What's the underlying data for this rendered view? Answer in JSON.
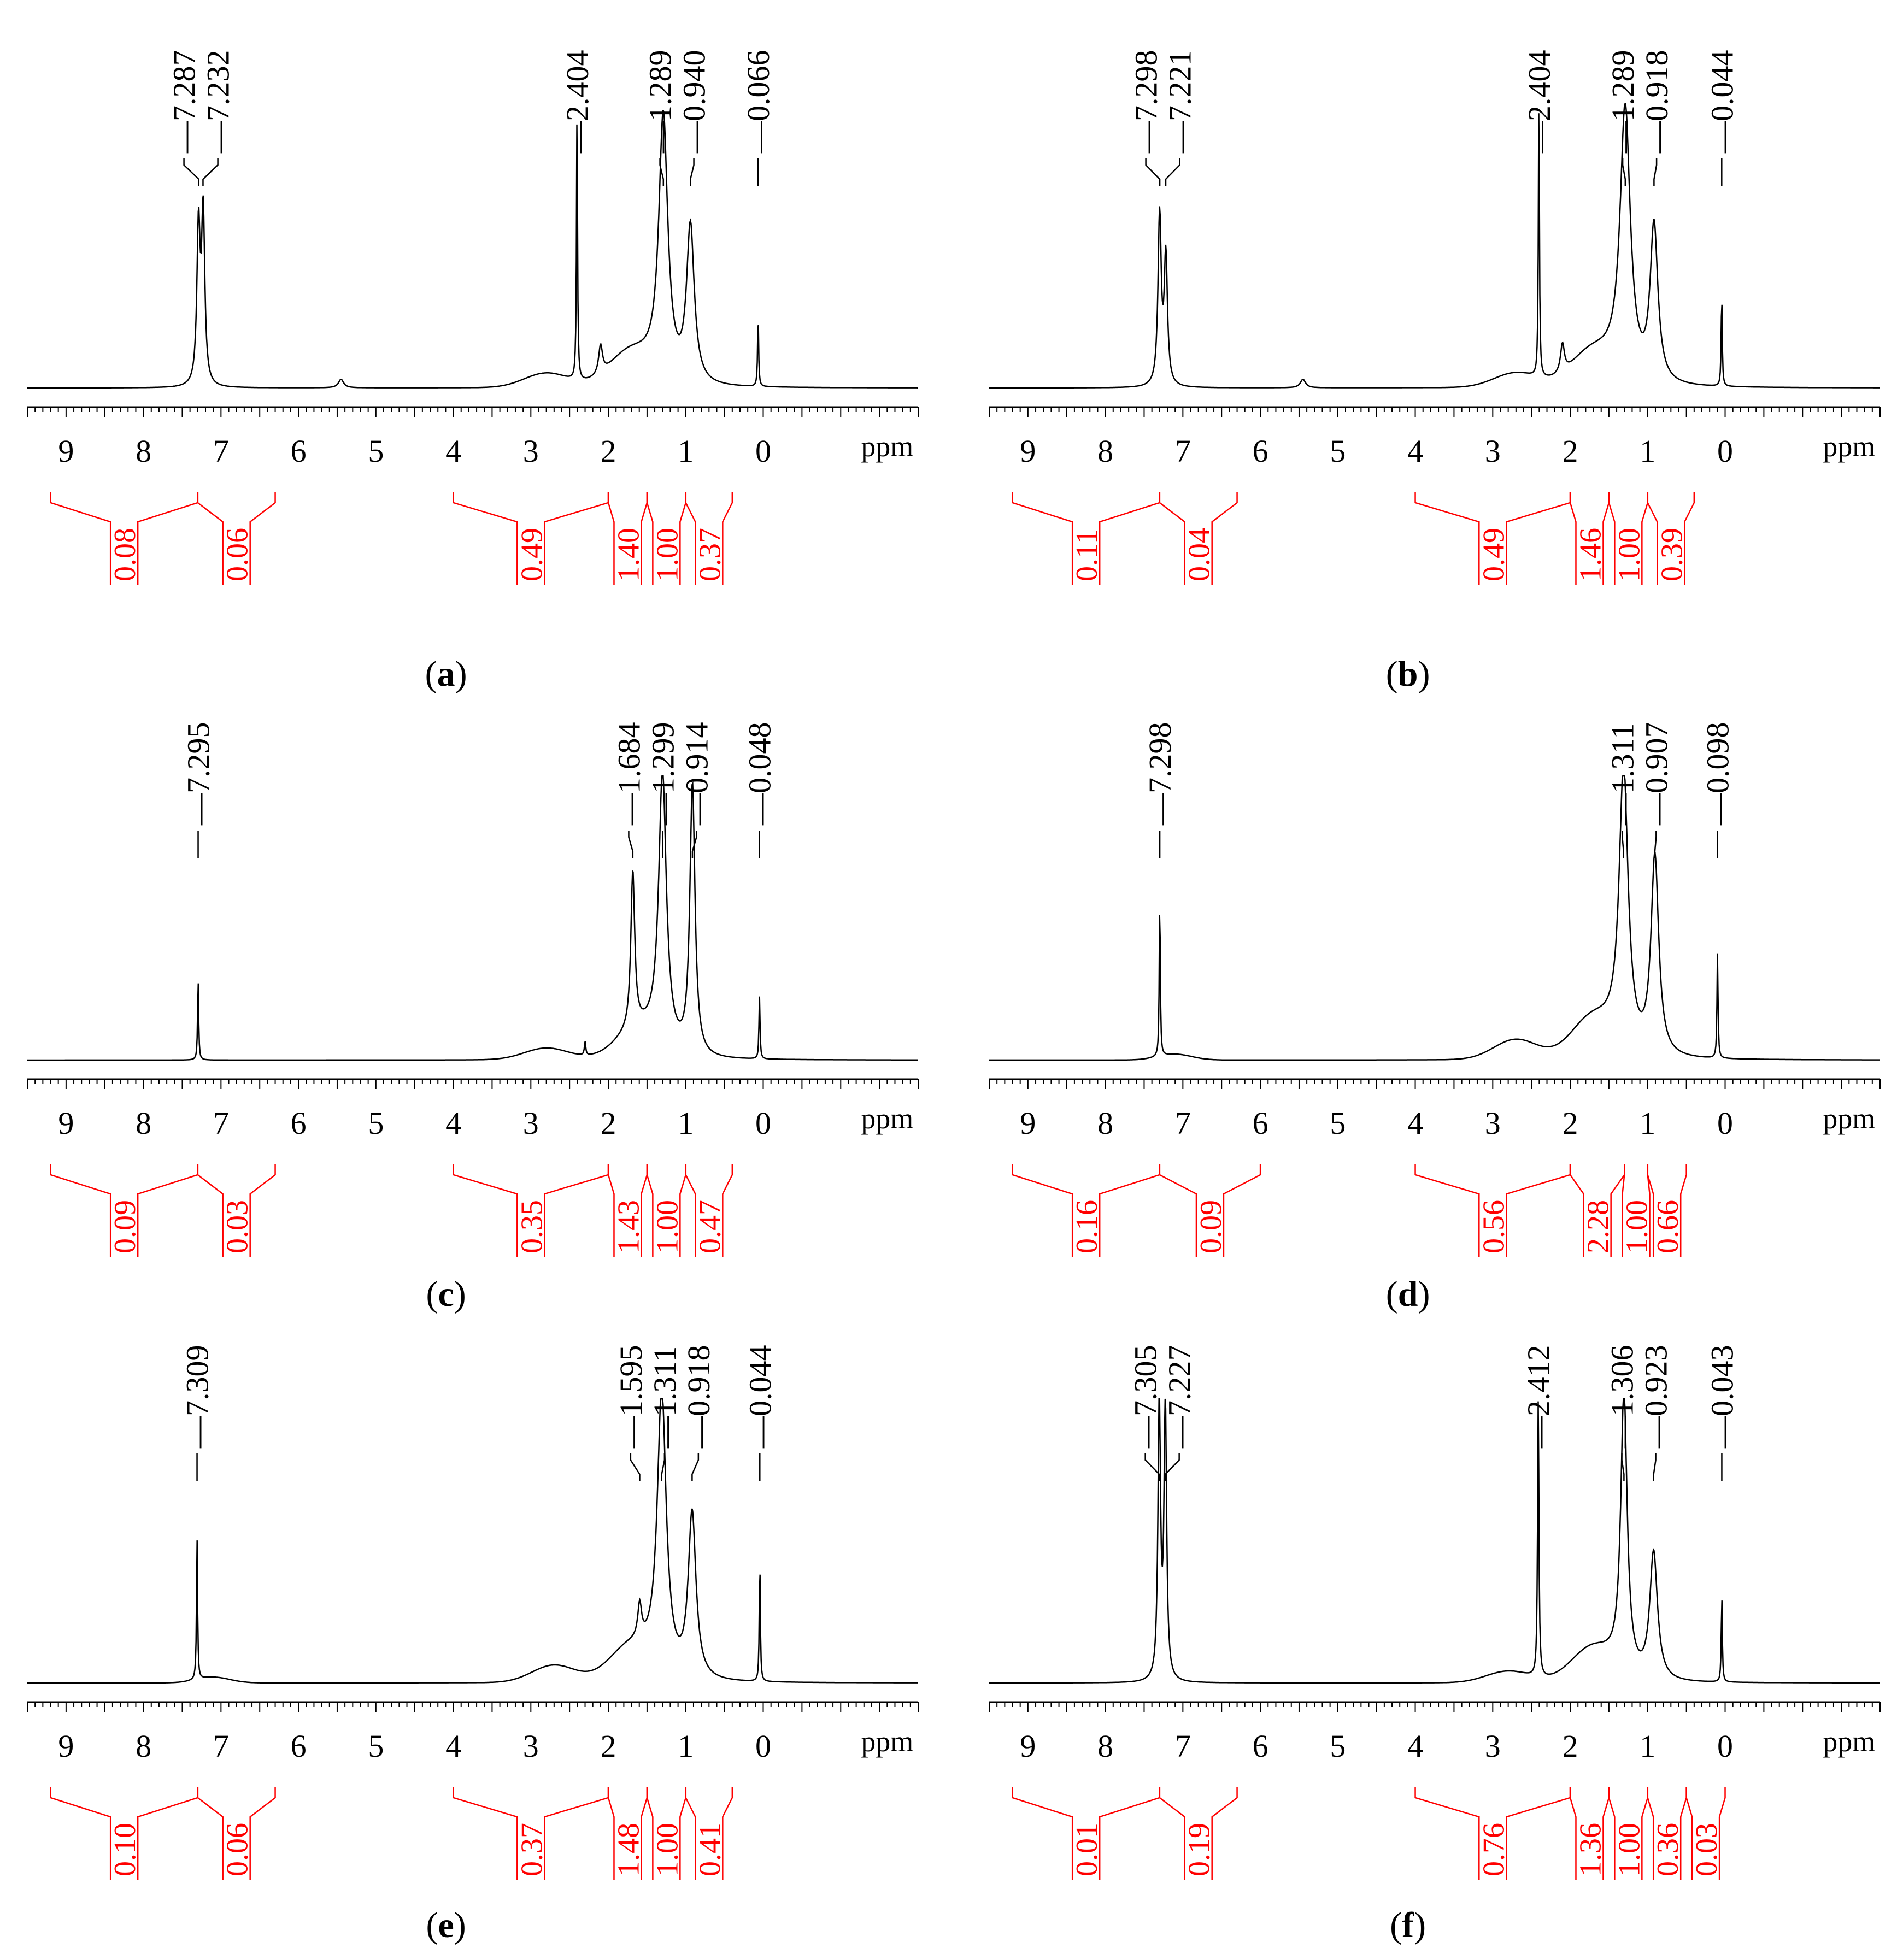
{
  "figure": {
    "panels": [
      {
        "label_prefix": "(",
        "label": "a",
        "label_suffix": ")"
      },
      {
        "label_prefix": "(",
        "label": "b",
        "label_suffix": ")"
      },
      {
        "label_prefix": "(",
        "label": "c",
        "label_suffix": ")"
      },
      {
        "label_prefix": "(",
        "label": "d",
        "label_suffix": ")"
      },
      {
        "label_prefix": "(",
        "label": "e",
        "label_suffix": ")"
      },
      {
        "label_prefix": "(",
        "label": "f",
        "label_suffix": ")"
      }
    ]
  },
  "colors": {
    "spectrum": "#000000",
    "integral": "#ff0000",
    "background": "#ffffff"
  },
  "chart_data": [
    {
      "type": "line",
      "panel": "a",
      "x_unit": "ppm",
      "xlim": [
        9.5,
        -2.0
      ],
      "x_reversed": true,
      "tick_labels": [
        "9",
        "8",
        "7",
        "6",
        "5",
        "4",
        "3",
        "2",
        "1",
        "0"
      ],
      "peak_labels": [
        {
          "ppm": 7.287,
          "text": "7.287"
        },
        {
          "ppm": 7.232,
          "text": "7.232"
        },
        {
          "ppm": 2.404,
          "text": "2.404"
        },
        {
          "ppm": 1.289,
          "text": "1.289"
        },
        {
          "ppm": 0.94,
          "text": "0.940"
        },
        {
          "ppm": 0.066,
          "text": "0.066"
        }
      ],
      "peaks": [
        {
          "ppm": 7.29,
          "height": 0.55,
          "width": 0.025
        },
        {
          "ppm": 7.23,
          "height": 0.6,
          "width": 0.025
        },
        {
          "ppm": 5.45,
          "height": 0.03,
          "width": 0.04
        },
        {
          "ppm": 2.404,
          "height": 0.95,
          "width": 0.008
        },
        {
          "ppm": 2.1,
          "height": 0.1,
          "width": 0.03
        },
        {
          "ppm": 1.29,
          "height": 0.92,
          "width": 0.07
        },
        {
          "ppm": 0.94,
          "height": 0.55,
          "width": 0.06
        },
        {
          "ppm": 0.066,
          "height": 0.25,
          "width": 0.008
        }
      ],
      "broad": [
        {
          "ppm": 2.8,
          "height": 0.05,
          "width": 0.4
        },
        {
          "ppm": 1.7,
          "height": 0.12,
          "width": 0.4
        }
      ],
      "integrals": [
        {
          "from": 9.2,
          "to": 7.3,
          "value": "0.08"
        },
        {
          "from": 7.3,
          "to": 6.3,
          "value": "0.06"
        },
        {
          "from": 4.0,
          "to": 2.0,
          "value": "0.49"
        },
        {
          "from": 2.0,
          "to": 1.5,
          "value": "1.40"
        },
        {
          "from": 1.5,
          "to": 1.0,
          "value": "1.00"
        },
        {
          "from": 1.0,
          "to": 0.4,
          "value": "0.37"
        }
      ]
    },
    {
      "type": "line",
      "panel": "b",
      "x_unit": "ppm",
      "xlim": [
        9.5,
        -2.0
      ],
      "x_reversed": true,
      "tick_labels": [
        "9",
        "8",
        "7",
        "6",
        "5",
        "4",
        "3",
        "2",
        "1",
        "0"
      ],
      "peak_labels": [
        {
          "ppm": 7.298,
          "text": "7.298"
        },
        {
          "ppm": 7.221,
          "text": "7.221"
        },
        {
          "ppm": 2.404,
          "text": "2.404"
        },
        {
          "ppm": 1.289,
          "text": "1.289"
        },
        {
          "ppm": 0.918,
          "text": "0.918"
        },
        {
          "ppm": 0.044,
          "text": "0.044"
        }
      ],
      "peaks": [
        {
          "ppm": 7.3,
          "height": 0.6,
          "width": 0.025
        },
        {
          "ppm": 7.22,
          "height": 0.45,
          "width": 0.025
        },
        {
          "ppm": 5.45,
          "height": 0.03,
          "width": 0.04
        },
        {
          "ppm": 2.404,
          "height": 0.98,
          "width": 0.008
        },
        {
          "ppm": 2.1,
          "height": 0.1,
          "width": 0.03
        },
        {
          "ppm": 1.29,
          "height": 0.95,
          "width": 0.08
        },
        {
          "ppm": 0.918,
          "height": 0.55,
          "width": 0.06
        },
        {
          "ppm": 0.044,
          "height": 0.32,
          "width": 0.008
        }
      ],
      "broad": [
        {
          "ppm": 2.7,
          "height": 0.05,
          "width": 0.4
        },
        {
          "ppm": 1.7,
          "height": 0.12,
          "width": 0.4
        }
      ],
      "integrals": [
        {
          "from": 9.2,
          "to": 7.3,
          "value": "0.11"
        },
        {
          "from": 7.3,
          "to": 6.3,
          "value": "0.04"
        },
        {
          "from": 4.0,
          "to": 2.0,
          "value": "0.49"
        },
        {
          "from": 2.0,
          "to": 1.5,
          "value": "1.46"
        },
        {
          "from": 1.5,
          "to": 1.0,
          "value": "1.00"
        },
        {
          "from": 1.0,
          "to": 0.4,
          "value": "0.39"
        }
      ]
    },
    {
      "type": "line",
      "panel": "c",
      "x_unit": "ppm",
      "xlim": [
        9.5,
        -2.0
      ],
      "x_reversed": true,
      "tick_labels": [
        "9",
        "8",
        "7",
        "6",
        "5",
        "4",
        "3",
        "2",
        "1",
        "0"
      ],
      "peak_labels": [
        {
          "ppm": 7.295,
          "text": "7.295"
        },
        {
          "ppm": 1.684,
          "text": "1.684"
        },
        {
          "ppm": 1.299,
          "text": "1.299"
        },
        {
          "ppm": 0.914,
          "text": "0.914"
        },
        {
          "ppm": 0.048,
          "text": "0.048"
        }
      ],
      "peaks": [
        {
          "ppm": 7.295,
          "height": 0.28,
          "width": 0.008
        },
        {
          "ppm": 2.3,
          "height": 0.05,
          "width": 0.01
        },
        {
          "ppm": 1.684,
          "height": 0.55,
          "width": 0.03
        },
        {
          "ppm": 1.3,
          "height": 0.95,
          "width": 0.06
        },
        {
          "ppm": 0.914,
          "height": 0.95,
          "width": 0.04
        },
        {
          "ppm": 0.048,
          "height": 0.22,
          "width": 0.008
        }
      ],
      "broad": [
        {
          "ppm": 2.8,
          "height": 0.04,
          "width": 0.4
        },
        {
          "ppm": 1.6,
          "height": 0.1,
          "width": 0.4
        }
      ],
      "integrals": [
        {
          "from": 9.2,
          "to": 7.3,
          "value": "0.09"
        },
        {
          "from": 7.3,
          "to": 6.3,
          "value": "0.03"
        },
        {
          "from": 4.0,
          "to": 2.0,
          "value": "0.35"
        },
        {
          "from": 2.0,
          "to": 1.5,
          "value": "1.43"
        },
        {
          "from": 1.5,
          "to": 1.0,
          "value": "1.00"
        },
        {
          "from": 1.0,
          "to": 0.4,
          "value": "0.47"
        }
      ]
    },
    {
      "type": "line",
      "panel": "d",
      "x_unit": "ppm",
      "xlim": [
        9.5,
        -2.0
      ],
      "x_reversed": true,
      "tick_labels": [
        "9",
        "8",
        "7",
        "6",
        "5",
        "4",
        "3",
        "2",
        "1",
        "0"
      ],
      "peak_labels": [
        {
          "ppm": 7.298,
          "text": "7.298"
        },
        {
          "ppm": 1.311,
          "text": "1.311"
        },
        {
          "ppm": 0.907,
          "text": "0.907"
        },
        {
          "ppm": 0.098,
          "text": "0.098"
        }
      ],
      "peaks": [
        {
          "ppm": 7.298,
          "height": 0.55,
          "width": 0.008
        },
        {
          "ppm": 1.31,
          "height": 0.98,
          "width": 0.07
        },
        {
          "ppm": 0.907,
          "height": 0.7,
          "width": 0.06
        },
        {
          "ppm": 0.098,
          "height": 0.37,
          "width": 0.008
        }
      ],
      "broad": [
        {
          "ppm": 7.1,
          "height": 0.02,
          "width": 0.3
        },
        {
          "ppm": 2.7,
          "height": 0.07,
          "width": 0.4
        },
        {
          "ppm": 1.7,
          "height": 0.14,
          "width": 0.4
        }
      ],
      "integrals": [
        {
          "from": 9.2,
          "to": 7.3,
          "value": "0.16"
        },
        {
          "from": 7.3,
          "to": 6.0,
          "value": "0.09"
        },
        {
          "from": 4.0,
          "to": 2.0,
          "value": "0.56"
        },
        {
          "from": 2.0,
          "to": 1.3,
          "value": "2.28"
        },
        {
          "from": 1.3,
          "to": 1.0,
          "value": "1.00"
        },
        {
          "from": 1.0,
          "to": 0.5,
          "value": "0.66"
        }
      ]
    },
    {
      "type": "line",
      "panel": "e",
      "x_unit": "ppm",
      "xlim": [
        9.5,
        -2.0
      ],
      "x_reversed": true,
      "tick_labels": [
        "9",
        "8",
        "7",
        "6",
        "5",
        "4",
        "3",
        "2",
        "1",
        "0"
      ],
      "peak_labels": [
        {
          "ppm": 7.309,
          "text": "7.309"
        },
        {
          "ppm": 1.595,
          "text": "1.595"
        },
        {
          "ppm": 1.311,
          "text": "1.311"
        },
        {
          "ppm": 0.918,
          "text": "0.918"
        },
        {
          "ppm": 0.044,
          "text": "0.044"
        }
      ],
      "peaks": [
        {
          "ppm": 7.309,
          "height": 0.5,
          "width": 0.008
        },
        {
          "ppm": 1.595,
          "height": 0.12,
          "width": 0.03
        },
        {
          "ppm": 1.31,
          "height": 0.98,
          "width": 0.07
        },
        {
          "ppm": 0.918,
          "height": 0.58,
          "width": 0.06
        },
        {
          "ppm": 0.044,
          "height": 0.42,
          "width": 0.008
        }
      ],
      "broad": [
        {
          "ppm": 7.1,
          "height": 0.02,
          "width": 0.3
        },
        {
          "ppm": 2.7,
          "height": 0.06,
          "width": 0.4
        },
        {
          "ppm": 1.7,
          "height": 0.12,
          "width": 0.4
        }
      ],
      "integrals": [
        {
          "from": 9.2,
          "to": 7.3,
          "value": "0.10"
        },
        {
          "from": 7.3,
          "to": 6.3,
          "value": "0.06"
        },
        {
          "from": 4.0,
          "to": 2.0,
          "value": "0.37"
        },
        {
          "from": 2.0,
          "to": 1.5,
          "value": "1.48"
        },
        {
          "from": 1.5,
          "to": 1.0,
          "value": "1.00"
        },
        {
          "from": 1.0,
          "to": 0.4,
          "value": "0.41"
        }
      ]
    },
    {
      "type": "line",
      "panel": "f",
      "x_unit": "ppm",
      "xlim": [
        9.5,
        -2.0
      ],
      "x_reversed": true,
      "tick_labels": [
        "9",
        "8",
        "7",
        "6",
        "5",
        "4",
        "3",
        "2",
        "1",
        "0"
      ],
      "peak_labels": [
        {
          "ppm": 7.305,
          "text": "7.305"
        },
        {
          "ppm": 7.227,
          "text": "7.227"
        },
        {
          "ppm": 2.412,
          "text": "2.412"
        },
        {
          "ppm": 1.306,
          "text": "1.306"
        },
        {
          "ppm": 0.923,
          "text": "0.923"
        },
        {
          "ppm": 0.043,
          "text": "0.043"
        }
      ],
      "peaks": [
        {
          "ppm": 7.305,
          "height": 0.98,
          "width": 0.02
        },
        {
          "ppm": 7.227,
          "height": 0.98,
          "width": 0.02
        },
        {
          "ppm": 2.412,
          "height": 0.98,
          "width": 0.01
        },
        {
          "ppm": 1.306,
          "height": 0.98,
          "width": 0.05
        },
        {
          "ppm": 0.923,
          "height": 0.45,
          "width": 0.06
        },
        {
          "ppm": 0.043,
          "height": 0.3,
          "width": 0.008
        }
      ],
      "broad": [
        {
          "ppm": 2.8,
          "height": 0.04,
          "width": 0.4
        },
        {
          "ppm": 1.7,
          "height": 0.12,
          "width": 0.4
        }
      ],
      "integrals": [
        {
          "from": 9.2,
          "to": 7.3,
          "value": "0.01"
        },
        {
          "from": 7.3,
          "to": 6.3,
          "value": "0.19"
        },
        {
          "from": 4.0,
          "to": 2.0,
          "value": "0.76"
        },
        {
          "from": 2.0,
          "to": 1.5,
          "value": "1.36"
        },
        {
          "from": 1.5,
          "to": 1.0,
          "value": "1.00"
        },
        {
          "from": 1.0,
          "to": 0.5,
          "value": "0.36"
        },
        {
          "from": 0.5,
          "to": 0.0,
          "value": "0.03"
        }
      ]
    }
  ]
}
